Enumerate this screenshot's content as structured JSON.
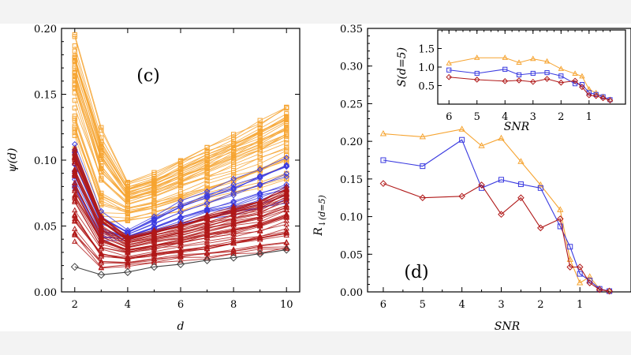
{
  "chart_data": [
    {
      "type": "line",
      "panel_label": "(c)",
      "xlabel": "d",
      "ylabel": "ψ(d)",
      "xlim": [
        1.5,
        10.5
      ],
      "ylim": [
        0,
        0.2
      ],
      "x_ticks": [
        2,
        4,
        6,
        8,
        10
      ],
      "x_tick_labels": [
        "2",
        "4",
        "6",
        "8",
        "10"
      ],
      "y_ticks": [
        0,
        0.05,
        0.1,
        0.15,
        0.2
      ],
      "y_tick_labels": [
        "0.00",
        "0.05",
        "0.10",
        "0.15",
        "0.20"
      ],
      "x": [
        2,
        3,
        4,
        5,
        6,
        7,
        8,
        9,
        10
      ],
      "series_groups": [
        {
          "name": "orange (square markers)",
          "color": "#f6a431",
          "marker": "square",
          "count": 38,
          "envelope_low": [
            0.095,
            0.045,
            0.052,
            0.056,
            0.06,
            0.065,
            0.07,
            0.076,
            0.082
          ],
          "envelope_high": [
            0.195,
            0.125,
            0.083,
            0.09,
            0.1,
            0.11,
            0.12,
            0.13,
            0.142
          ]
        },
        {
          "name": "blue (diamond markers)",
          "color": "#3a3ae0",
          "marker": "diamond",
          "count": 16,
          "envelope_low": [
            0.07,
            0.035,
            0.038,
            0.042,
            0.046,
            0.05,
            0.053,
            0.056,
            0.06
          ],
          "envelope_high": [
            0.115,
            0.062,
            0.047,
            0.058,
            0.07,
            0.078,
            0.086,
            0.095,
            0.105
          ]
        },
        {
          "name": "red (triangle markers)",
          "color": "#b01818",
          "marker": "triangle",
          "count": 45,
          "envelope_low": [
            0.038,
            0.018,
            0.02,
            0.022,
            0.024,
            0.026,
            0.028,
            0.03,
            0.032
          ],
          "envelope_high": [
            0.108,
            0.058,
            0.042,
            0.047,
            0.052,
            0.058,
            0.064,
            0.07,
            0.08
          ]
        }
      ],
      "series": [
        {
          "name": "gray (open diamonds)",
          "color": "#444444",
          "marker": "diamond-open",
          "values": [
            0.019,
            0.013,
            0.015,
            0.019,
            0.021,
            0.024,
            0.026,
            0.029,
            0.032
          ]
        }
      ]
    },
    {
      "type": "line",
      "panel_label": "(d)",
      "xlabel": "SNR",
      "ylabel": "R↓(d=5)",
      "ylabel_main": "R",
      "ylabel_sub": "↓(d=5)",
      "xlim": [
        6.4,
        -0.3
      ],
      "ylim": [
        0,
        0.35
      ],
      "x_ticks": [
        6,
        5,
        4,
        3,
        2,
        1
      ],
      "x_tick_labels": [
        "6",
        "5",
        "4",
        "3",
        "2",
        "1"
      ],
      "y_ticks": [
        0,
        0.05,
        0.1,
        0.15,
        0.2,
        0.25,
        0.3,
        0.35
      ],
      "y_tick_labels": [
        "0.00",
        "0.05",
        "0.10",
        "0.15",
        "0.20",
        "0.25",
        "0.30",
        "0.35"
      ],
      "x": [
        6,
        5,
        4,
        3.5,
        3,
        2.5,
        2,
        1.5,
        1.25,
        1,
        0.75,
        0.5,
        0.25
      ],
      "series": [
        {
          "name": "orange",
          "color": "#f6a431",
          "marker": "triangle",
          "values": [
            0.21,
            0.206,
            0.216,
            0.194,
            0.204,
            0.173,
            0.142,
            0.109,
            0.043,
            0.012,
            0.02,
            0.004,
            0.001
          ]
        },
        {
          "name": "blue",
          "color": "#3a3ae0",
          "marker": "square",
          "values": [
            0.175,
            0.167,
            0.202,
            0.138,
            0.149,
            0.143,
            0.138,
            0.087,
            0.06,
            0.024,
            0.015,
            0.004,
            0.001
          ]
        },
        {
          "name": "red",
          "color": "#b01818",
          "marker": "diamond",
          "values": [
            0.144,
            0.125,
            0.127,
            0.142,
            0.103,
            0.125,
            0.085,
            0.097,
            0.033,
            0.033,
            0.012,
            0.003,
            0.001
          ]
        }
      ]
    },
    {
      "type": "line",
      "panel_label": "inset",
      "xlabel": "SNR",
      "ylabel": "S(d=5)",
      "xlim": [
        6.4,
        -0.3
      ],
      "ylim": [
        0,
        2
      ],
      "x_ticks": [
        6,
        5,
        4,
        3,
        2,
        1
      ],
      "x_tick_labels": [
        "6",
        "5",
        "4",
        "3",
        "2",
        "1"
      ],
      "y_ticks": [
        0.5,
        1.0,
        1.5
      ],
      "y_tick_labels": [
        "0.5",
        "1.0",
        "1.5"
      ],
      "x": [
        6,
        5,
        4,
        3.5,
        3,
        2.5,
        2,
        1.5,
        1.25,
        1,
        0.75,
        0.5,
        0.25
      ],
      "series": [
        {
          "name": "orange",
          "color": "#f6a431",
          "marker": "triangle",
          "values": [
            1.1,
            1.25,
            1.25,
            1.12,
            1.22,
            1.15,
            0.95,
            0.82,
            0.75,
            0.4,
            0.3,
            0.2,
            0.12
          ]
        },
        {
          "name": "blue",
          "color": "#3a3ae0",
          "marker": "square",
          "values": [
            0.92,
            0.83,
            0.94,
            0.79,
            0.83,
            0.85,
            0.76,
            0.55,
            0.53,
            0.31,
            0.26,
            0.2,
            0.12
          ]
        },
        {
          "name": "red",
          "color": "#b01818",
          "marker": "diamond",
          "values": [
            0.73,
            0.66,
            0.62,
            0.64,
            0.6,
            0.68,
            0.58,
            0.63,
            0.46,
            0.24,
            0.22,
            0.16,
            0.1
          ]
        }
      ]
    }
  ]
}
